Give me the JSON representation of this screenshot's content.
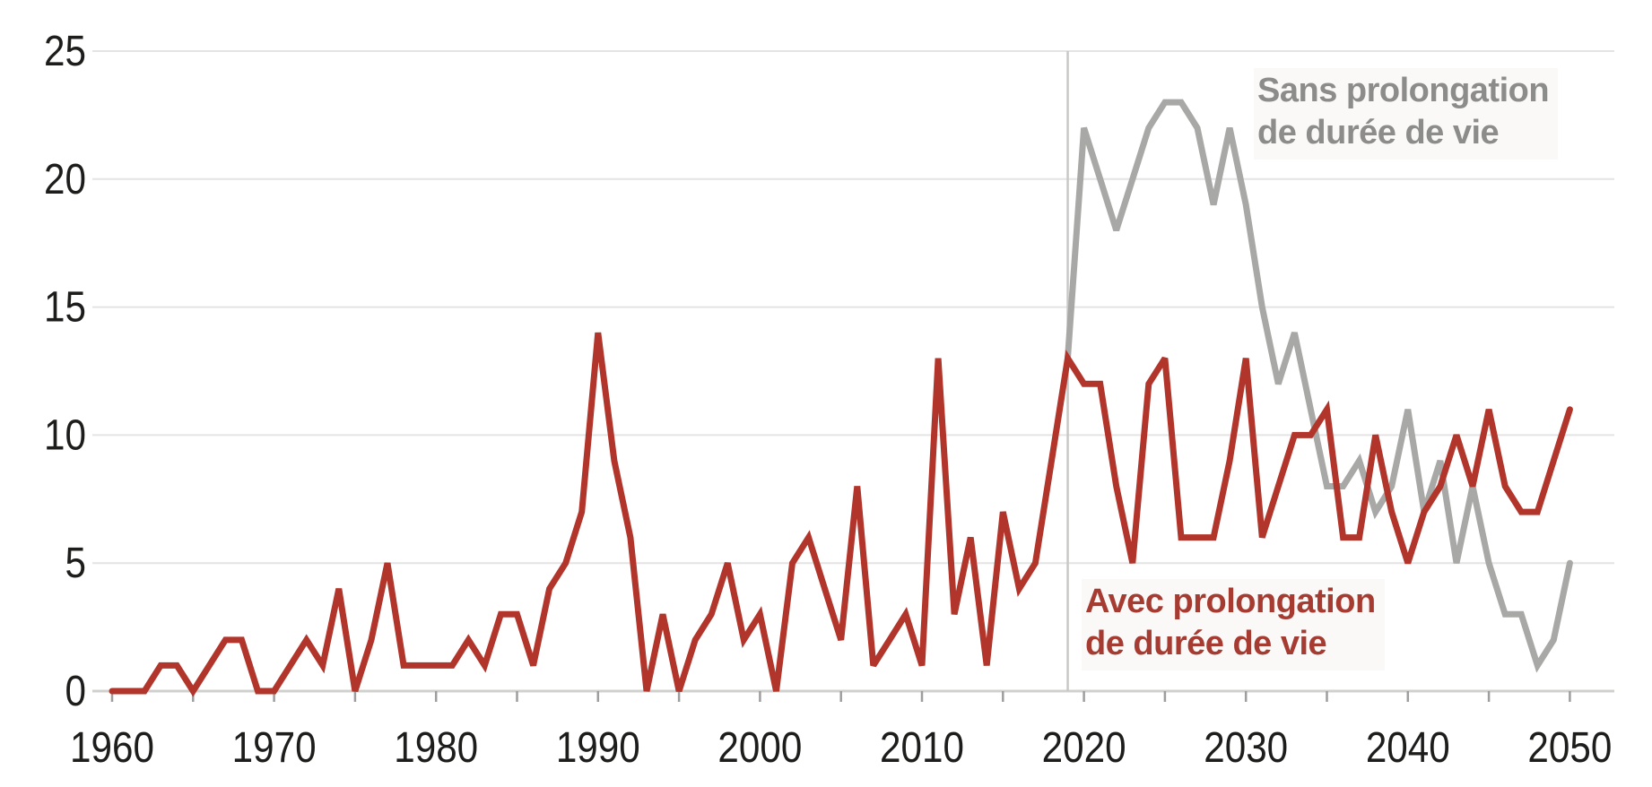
{
  "chart_data": {
    "type": "line",
    "title": "",
    "xlabel": "",
    "ylabel": "",
    "x_start": 1960,
    "x_end": 2050,
    "xlim": [
      1960,
      2050
    ],
    "ylim": [
      0,
      25
    ],
    "x_minor_tick_interval": 5,
    "x_tick_labels": [
      "1960",
      "1970",
      "1980",
      "1990",
      "2000",
      "2010",
      "2020",
      "2030",
      "2040",
      "2050"
    ],
    "y_tick_labels": [
      "0",
      "5",
      "10",
      "15",
      "20",
      "25"
    ],
    "y_ticks": [
      0,
      5,
      10,
      15,
      20,
      25
    ],
    "grid": "horizontal-gridlines-on",
    "legend_position": "annotations-on-plot",
    "divider_year": 2019,
    "series": [
      {
        "name": "Avec prolongation de durée de vie",
        "color": "#b2352b",
        "x_first": 1960,
        "values": [
          0,
          0,
          0,
          1,
          1,
          0,
          1,
          2,
          2,
          0,
          0,
          1,
          2,
          1,
          4,
          0,
          2,
          5,
          1,
          1,
          1,
          1,
          2,
          1,
          3,
          3,
          1,
          4,
          5,
          7,
          14,
          9,
          6,
          0,
          3,
          0,
          2,
          3,
          5,
          2,
          3,
          0,
          5,
          6,
          4,
          2,
          8,
          1,
          2,
          3,
          1,
          13,
          3,
          6,
          1,
          7,
          4,
          5,
          9,
          13,
          12,
          12,
          8,
          5,
          12,
          13,
          6,
          6,
          6,
          9,
          13,
          6,
          8,
          10,
          10,
          11,
          6,
          6,
          10,
          7,
          5,
          7,
          8,
          10,
          8,
          11,
          8,
          7,
          7,
          9,
          11
        ]
      },
      {
        "name": "Sans prolongation de durée de vie",
        "color": "#a8a8a6",
        "x_first": 2019,
        "values": [
          13,
          22,
          20,
          18,
          20,
          22,
          23,
          23,
          22,
          19,
          22,
          19,
          15,
          12,
          14,
          11,
          8,
          8,
          9,
          7,
          8,
          11,
          7,
          9,
          5,
          8,
          5,
          3,
          3,
          1,
          2,
          5
        ]
      }
    ]
  },
  "labels": {
    "sans": {
      "line1": "Sans prolongation",
      "line2": "de durée de vie"
    },
    "avec": {
      "line1": "Avec prolongation",
      "line2": "de durée de vie"
    }
  },
  "colors": {
    "red_line": "#b2352b",
    "red_text": "#a63b32",
    "gray_line": "#a8a8a6",
    "gray_text": "#8c8c8a",
    "gridline": "#e4e4e4",
    "axis_line": "#d0d0ce",
    "tick": "#9e9e9e",
    "divider": "#c8c8c6",
    "axis_text": "#1d1d1b",
    "background": "#ffffff"
  }
}
